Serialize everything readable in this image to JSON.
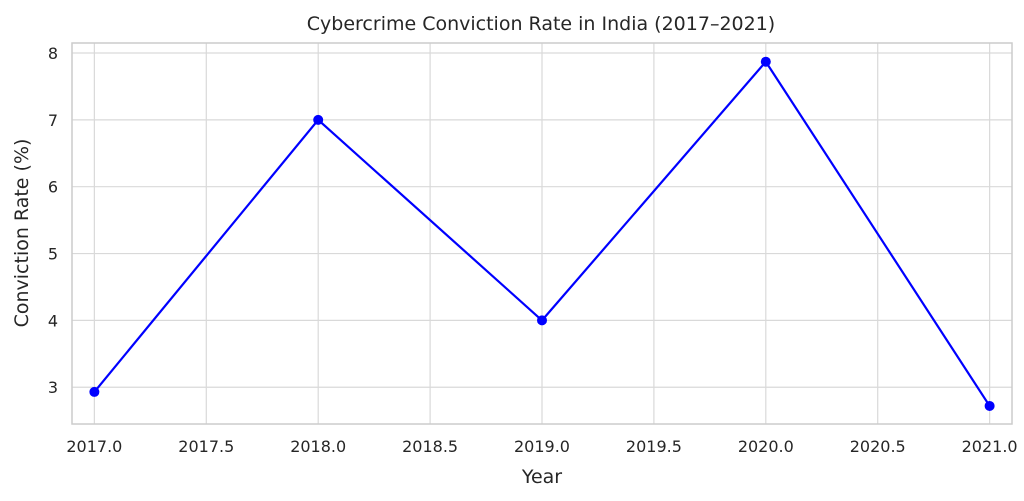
{
  "chart_data": {
    "type": "line",
    "title": "Cybercrime Conviction Rate in India (2017–2021)",
    "xlabel": "Year",
    "ylabel": "Conviction Rate (%)",
    "x": [
      2017,
      2018,
      2019,
      2020,
      2021
    ],
    "series": [
      {
        "values": [
          2.93,
          7.0,
          4.0,
          7.87,
          2.72
        ]
      }
    ],
    "xlim": [
      2016.9,
      2021.1
    ],
    "ylim": [
      2.45,
      8.15
    ],
    "xticks": [
      2017.0,
      2017.5,
      2018.0,
      2018.5,
      2019.0,
      2019.5,
      2020.0,
      2020.5,
      2021.0
    ],
    "xtick_labels": [
      "2017.0",
      "2017.5",
      "2018.0",
      "2018.5",
      "2019.0",
      "2019.5",
      "2020.0",
      "2020.5",
      "2021.0"
    ],
    "yticks": [
      3,
      4,
      5,
      6,
      7,
      8
    ],
    "ytick_labels": [
      "3",
      "4",
      "5",
      "6",
      "7",
      "8"
    ],
    "grid": true,
    "line_color": "#0000ff",
    "marker": "circle"
  }
}
